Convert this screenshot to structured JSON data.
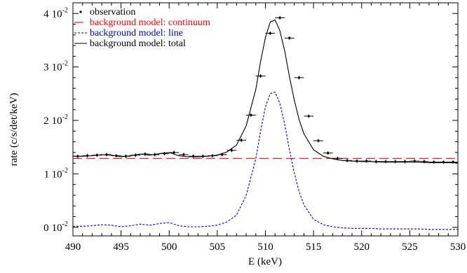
{
  "chart_data": {
    "type": "line",
    "xlabel": "E (keV)",
    "ylabel": "rate (c/s/det/keV)",
    "xlim": [
      490,
      530
    ],
    "ylim": [
      -0.0016,
      0.042
    ],
    "grid": false,
    "legend_position": "top-left",
    "x_ticks": [
      {
        "value": 490,
        "label": "490"
      },
      {
        "value": 495,
        "label": "495"
      },
      {
        "value": 500,
        "label": "500"
      },
      {
        "value": 505,
        "label": "505"
      },
      {
        "value": 510,
        "label": "510"
      },
      {
        "value": 515,
        "label": "515"
      },
      {
        "value": 520,
        "label": "520"
      },
      {
        "value": 525,
        "label": "525"
      },
      {
        "value": 530,
        "label": "530"
      }
    ],
    "y_ticks": [
      {
        "value": 0.0,
        "mantissa": "0",
        "base": "10",
        "exponent": "-2"
      },
      {
        "value": 0.01,
        "mantissa": "1",
        "base": "10",
        "exponent": "-2"
      },
      {
        "value": 0.02,
        "mantissa": "2",
        "base": "10",
        "exponent": "-2"
      },
      {
        "value": 0.03,
        "mantissa": "3",
        "base": "10",
        "exponent": "-2"
      },
      {
        "value": 0.04,
        "mantissa": "4",
        "base": "10",
        "exponent": "-2"
      }
    ],
    "series": [
      {
        "name": "observation",
        "style": "points",
        "color": "#000000",
        "x": [
          490.5,
          491.5,
          492.5,
          493.5,
          494.5,
          495.5,
          496.5,
          497.5,
          498.5,
          499.5,
          500.5,
          501.5,
          502.5,
          503.5,
          504.5,
          505.5,
          506.5,
          507.5,
          508.5,
          509.5,
          510.5,
          511.5,
          512.5,
          513.5,
          514.5,
          515.5,
          516.5,
          517.5,
          518.5,
          519.5,
          520.5,
          521.5,
          522.5,
          523.5,
          524.5,
          525.5,
          526.5,
          527.5,
          528.5,
          529.5
        ],
        "y": [
          0.0133,
          0.0134,
          0.0135,
          0.0136,
          0.0134,
          0.0133,
          0.0135,
          0.0137,
          0.0136,
          0.0138,
          0.014,
          0.0136,
          0.0133,
          0.0133,
          0.0134,
          0.0136,
          0.0144,
          0.0163,
          0.021,
          0.0283,
          0.0363,
          0.0392,
          0.0354,
          0.028,
          0.0208,
          0.0162,
          0.0139,
          0.0129,
          0.0125,
          0.0124,
          0.0124,
          0.0123,
          0.0123,
          0.0123,
          0.0123,
          0.0124,
          0.0123,
          0.0122,
          0.0122,
          0.0122
        ]
      },
      {
        "name": "background model: continuum",
        "style": "dashed",
        "color": "#ff0000",
        "x": [
          490,
          530
        ],
        "y": [
          0.0129,
          0.0129
        ]
      },
      {
        "name": "background model: line",
        "style": "dotted",
        "color": "#0000cc",
        "x": [
          490,
          491,
          492,
          493,
          494,
          495,
          496,
          497,
          498,
          499,
          500,
          501,
          502,
          503,
          504,
          505,
          506,
          507,
          508,
          509,
          509.5,
          510,
          510.5,
          511,
          511.5,
          512,
          512.5,
          513,
          513.5,
          514,
          515,
          516,
          517,
          518,
          519,
          520,
          521,
          522,
          523,
          524,
          525,
          526,
          527,
          528,
          529,
          530
        ],
        "y": [
          0.0002,
          0.0002,
          0.0003,
          0.0005,
          0.0004,
          0.0001,
          0.0003,
          0.0006,
          0.0004,
          0.0007,
          0.0009,
          0.0003,
          0.0001,
          0.0001,
          0.0002,
          0.0004,
          0.001,
          0.0023,
          0.006,
          0.0128,
          0.018,
          0.0225,
          0.025,
          0.0253,
          0.0232,
          0.0193,
          0.0145,
          0.0102,
          0.0067,
          0.0042,
          0.0015,
          0.0005,
          0.0001,
          -0.0001,
          -0.0002,
          -0.0002,
          -0.0002,
          -0.0003,
          -0.0003,
          -0.0003,
          -0.0003,
          -0.0003,
          -0.0004,
          -0.0004,
          -0.0004,
          -0.0004
        ]
      },
      {
        "name": "background model: total",
        "style": "solid",
        "color": "#000000",
        "x": [
          490,
          491,
          492,
          493,
          494,
          495,
          496,
          497,
          498,
          499,
          500,
          501,
          502,
          503,
          504,
          505,
          506,
          507,
          508,
          509,
          509.5,
          510,
          510.5,
          511,
          511.5,
          512,
          512.5,
          513,
          513.5,
          514,
          515,
          516,
          517,
          518,
          519,
          520,
          521,
          522,
          523,
          524,
          525,
          526,
          527,
          528,
          529,
          530
        ],
        "y": [
          0.0133,
          0.0133,
          0.0134,
          0.0136,
          0.0135,
          0.0132,
          0.0134,
          0.0137,
          0.0135,
          0.0138,
          0.014,
          0.0134,
          0.0132,
          0.0132,
          0.0133,
          0.0135,
          0.0141,
          0.0154,
          0.019,
          0.0258,
          0.031,
          0.0355,
          0.0384,
          0.0388,
          0.0368,
          0.033,
          0.0282,
          0.0238,
          0.0202,
          0.0175,
          0.0145,
          0.0133,
          0.0128,
          0.0125,
          0.0124,
          0.0123,
          0.0123,
          0.0122,
          0.0122,
          0.0122,
          0.0122,
          0.0122,
          0.0121,
          0.0121,
          0.0121,
          0.0121
        ]
      }
    ]
  }
}
